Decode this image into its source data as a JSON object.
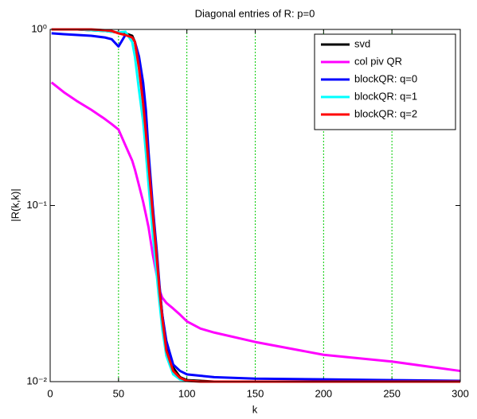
{
  "chart_data": {
    "type": "line",
    "title": "Diagonal entries of R: p=0",
    "xlabel": "k",
    "ylabel": "|R(k,k)|",
    "yscale": "log",
    "xgrid": true,
    "grid_color": "#00cc00",
    "legend": "upper right",
    "xlim": [
      0,
      300
    ],
    "xticks": [
      0,
      50,
      100,
      150,
      200,
      250,
      300
    ],
    "ylim": [
      0.01,
      1
    ],
    "yticks": [
      {
        "value": 0.01,
        "label": "10⁻²"
      },
      {
        "value": 0.1,
        "label": "10⁻¹"
      },
      {
        "value": 1,
        "label": "10⁰"
      }
    ],
    "x": [
      1,
      10,
      20,
      30,
      40,
      45,
      50,
      55,
      60,
      62,
      65,
      68,
      70,
      72,
      75,
      78,
      80,
      82,
      85,
      90,
      95,
      100,
      110,
      120,
      150,
      200,
      250,
      300
    ],
    "series": [
      {
        "name": "svd",
        "color": "#000000",
        "values": [
          1,
          1,
          1,
          0.99,
          0.98,
          0.97,
          0.96,
          0.95,
          0.92,
          0.85,
          0.62,
          0.4,
          0.27,
          0.17,
          0.09,
          0.05,
          0.034,
          0.024,
          0.016,
          0.012,
          0.0106,
          0.0102,
          0.0101,
          0.01,
          0.01,
          0.01,
          0.01,
          0.01
        ]
      },
      {
        "name": "col piv QR",
        "color": "#ff00ff",
        "values": [
          0.5,
          0.44,
          0.39,
          0.35,
          0.31,
          0.29,
          0.27,
          0.22,
          0.18,
          0.16,
          0.13,
          0.105,
          0.089,
          0.075,
          0.053,
          0.04,
          0.033,
          0.03,
          0.028,
          0.026,
          0.024,
          0.022,
          0.02,
          0.019,
          0.0168,
          0.0142,
          0.013,
          0.0115
        ]
      },
      {
        "name": "blockQR: q=0",
        "color": "#0000ff",
        "values": [
          0.95,
          0.94,
          0.93,
          0.92,
          0.9,
          0.88,
          0.8,
          0.93,
          0.9,
          0.85,
          0.7,
          0.5,
          0.35,
          0.2,
          0.1,
          0.055,
          0.035,
          0.024,
          0.017,
          0.0125,
          0.0115,
          0.011,
          0.0108,
          0.0106,
          0.0104,
          0.0103,
          0.0102,
          0.0101
        ]
      },
      {
        "name": "blockQR: q=1",
        "color": "#00ffff",
        "values": [
          1,
          1,
          1,
          0.99,
          0.98,
          0.97,
          0.96,
          0.97,
          0.85,
          0.7,
          0.45,
          0.3,
          0.2,
          0.13,
          0.07,
          0.04,
          0.028,
          0.02,
          0.014,
          0.011,
          0.0103,
          0.0101,
          0.01,
          0.01,
          0.01,
          0.01,
          0.01,
          0.01
        ]
      },
      {
        "name": "blockQR: q=2",
        "color": "#ff0000",
        "values": [
          1,
          1,
          1,
          1,
          0.99,
          0.98,
          0.95,
          0.93,
          0.9,
          0.85,
          0.6,
          0.38,
          0.26,
          0.17,
          0.09,
          0.05,
          0.033,
          0.023,
          0.015,
          0.0115,
          0.0105,
          0.0101,
          0.01,
          0.01,
          0.01,
          0.01,
          0.01,
          0.01
        ]
      }
    ]
  }
}
